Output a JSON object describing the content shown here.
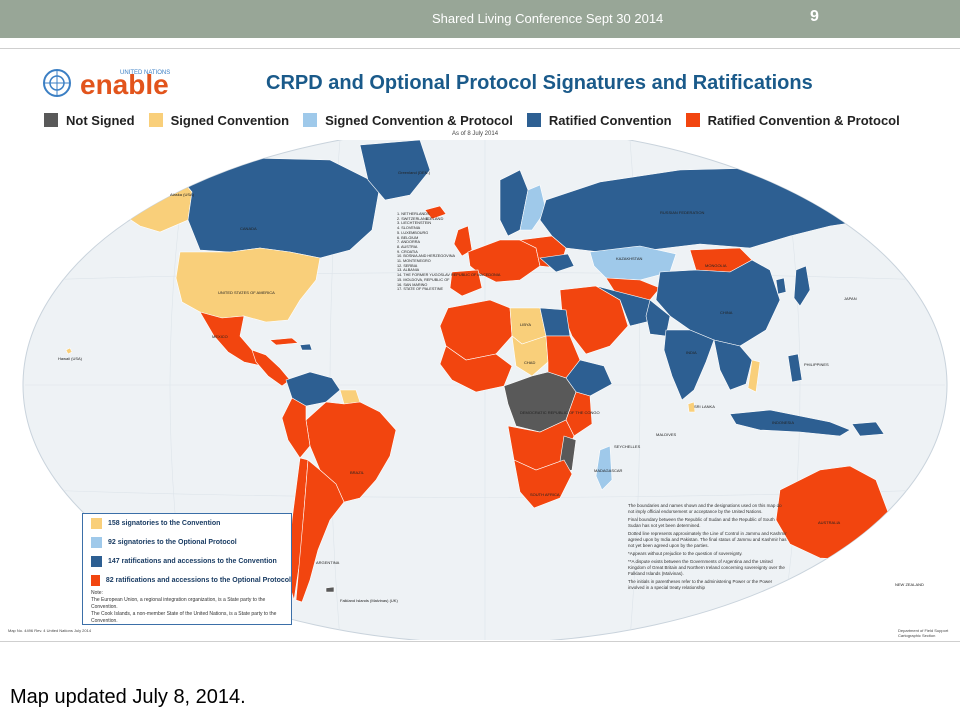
{
  "header": {
    "title": "Shared Living Conference Sept 30 2014",
    "slide_number": "9"
  },
  "map": {
    "logo_text": "enable",
    "logo_small_text": "UNITED NATIONS",
    "title": "CRPD and Optional Protocol  Signatures and Ratifications",
    "as_of": "As of  8 July 2014",
    "legend": [
      {
        "label": "Not Signed",
        "color": "#595959"
      },
      {
        "label": "Signed Convention",
        "color": "#f9cf7a"
      },
      {
        "label": "Signed Convention & Protocol",
        "color": "#9fc9ea"
      },
      {
        "label": "Ratified Convention",
        "color": "#2d5f92"
      },
      {
        "label": "Ratified Convention & Protocol",
        "color": "#f2450f"
      }
    ],
    "colors": {
      "ocean": "#f0f3f6",
      "not_signed": "#595959",
      "signed": "#f9cf7a",
      "signed_protocol": "#9fc9ea",
      "ratified": "#2d5f92",
      "ratified_protocol": "#f2450f"
    },
    "counts_box": {
      "rows": [
        {
          "label": "158 signatories to the Convention",
          "color": "#f9cf7a"
        },
        {
          "label": "92 signatories to the Optional Protocol",
          "color": "#9fc9ea"
        },
        {
          "label": "147 ratifications and accessions to the Convention",
          "color": "#2d5f92"
        },
        {
          "label": "82 ratifications and accessions to the Optional Protocol",
          "color": "#f2450f"
        }
      ],
      "note_title": "Note:",
      "note_1": "The European Union, a regional integration organization, is a State party to the Convention.",
      "note_2": "The Cook Islands, a non-member State of the United Nations, is a State party to the Convention."
    },
    "notes": [
      "The boundaries and names shown and the designations used on this map do not imply official endorsement or acceptance by the United Nations.",
      "Final boundary between the Republic of Sudan and the Republic of South Sudan has not yet been determined.",
      "Dotted line represents approximately the Line of Control in Jammu and Kashmir agreed upon by India and Pakistan. The final status of Jammu and Kashmir has not yet been agreed upon by the parties.",
      "*Appears without prejudice to the question of sovereignty.",
      "**A dispute exists between the Governments of Argentina and the United Kingdom of Great Britain and Northern Ireland concerning sovereignty over the Falkland Islands (Malvinas).",
      "The initials in parentheses refer to the administering Power or the Power involved in a special treaty relationship"
    ],
    "footer_left": "Map No. 4496 Rev. 4   United Nations\nJuly 2014",
    "footer_right": "Department of Field Support\nCartographic Section",
    "europe_list": [
      "1. NETHERLANDS",
      "2. SWITZERLAND",
      "3. LIECHTENSTEIN",
      "4. SLOVENIA",
      "5. LUXEMBOURG",
      "6. BELGIUM",
      "7. ANDORRA",
      "8. AUSTRIA",
      "9. CROATIA",
      "10. BOSNIA AND HERZEGOVINA",
      "11. MONTENEGRO",
      "12. SERBIA",
      "13. ALBANIA",
      "14. THE FORMER YUGOSLAV REPUBLIC OF MACEDONIA",
      "15. MOLDOVA, REPUBLIC OF",
      "16. SAN MARINO",
      "17. STATE OF PALESTINE"
    ],
    "labels": {
      "usa": "UNITED STATES OF AMERICA",
      "canada": "CANADA",
      "greenland": "Greenland (DEN.)",
      "alaska": "Alaska (USA)",
      "brazil": "BRAZIL",
      "russia": "RUSSIAN FEDERATION",
      "china": "CHINA",
      "india": "INDIA",
      "australia": "AUSTRALIA",
      "mongolia": "MONGOLIA",
      "kazakhstan": "KAZAKHSTAN",
      "libya": "LIBYA",
      "chad": "CHAD",
      "dr_congo": "DEMOCRATIC REPUBLIC OF THE CONGO",
      "south_africa": "SOUTH AFRICA",
      "new_zealand": "NEW ZEALAND",
      "philippines": "PHILIPPINES",
      "indonesia": "INDONESIA",
      "mexico": "MEXICO",
      "argentina": "ARGENTINA",
      "madagascar": "MADAGASCAR",
      "hawaii": "Hawaii (USA)",
      "falklands": "Falkland Islands (Malvinas) (UK)",
      "seychelles": "SEYCHELLES",
      "maldives": "MALDIVES",
      "sri_lanka": "SRI LANKA",
      "japan": "JAPAN",
      "iceland": "ICELAND"
    }
  },
  "caption": "Map updated July 8, 2014."
}
